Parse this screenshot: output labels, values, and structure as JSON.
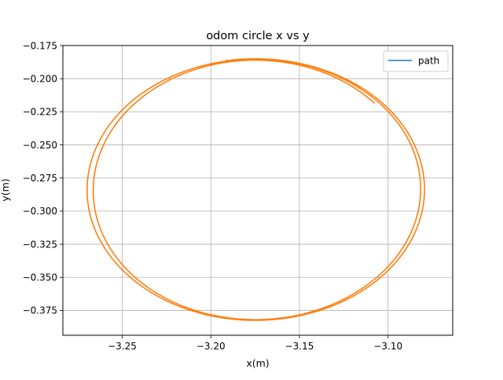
{
  "chart_data": {
    "type": "line",
    "title": "odom circle x vs y",
    "xlabel": "x(m)",
    "ylabel": "y(m)",
    "xlim": [
      -3.2835,
      -3.0635
    ],
    "ylim": [
      -0.3937,
      -0.175
    ],
    "xticks": [
      -3.25,
      -3.2,
      -3.15,
      -3.1
    ],
    "xtick_labels": [
      "−3.25",
      "−3.20",
      "−3.15",
      "−3.10"
    ],
    "yticks": [
      -0.175,
      -0.2,
      -0.225,
      -0.25,
      -0.275,
      -0.3,
      -0.325,
      -0.35,
      -0.375
    ],
    "ytick_labels": [
      "−0.175",
      "−0.200",
      "−0.225",
      "−0.250",
      "−0.275",
      "−0.300",
      "−0.325",
      "−0.350",
      "−0.375"
    ],
    "grid": true,
    "legend_position": "top-right",
    "legend_color": "#1f77b4",
    "series": [
      {
        "name": "path",
        "color": "#ff7f0e",
        "shape": "spiral",
        "center": [
          -3.175,
          -0.2838
        ],
        "start": [
          -3.1925,
          -0.185
        ],
        "end": [
          -3.0985,
          -0.2152
        ],
        "turns": [
          {
            "rx": 0.096,
            "ry": 0.0988
          },
          {
            "rx": 0.0945,
            "ry": 0.0985
          },
          {
            "rx": 0.0905,
            "ry": 0.0978
          }
        ]
      },
      {
        "name": "path",
        "color": "#1f77b4",
        "shape": "hidden-under",
        "values": []
      }
    ]
  }
}
